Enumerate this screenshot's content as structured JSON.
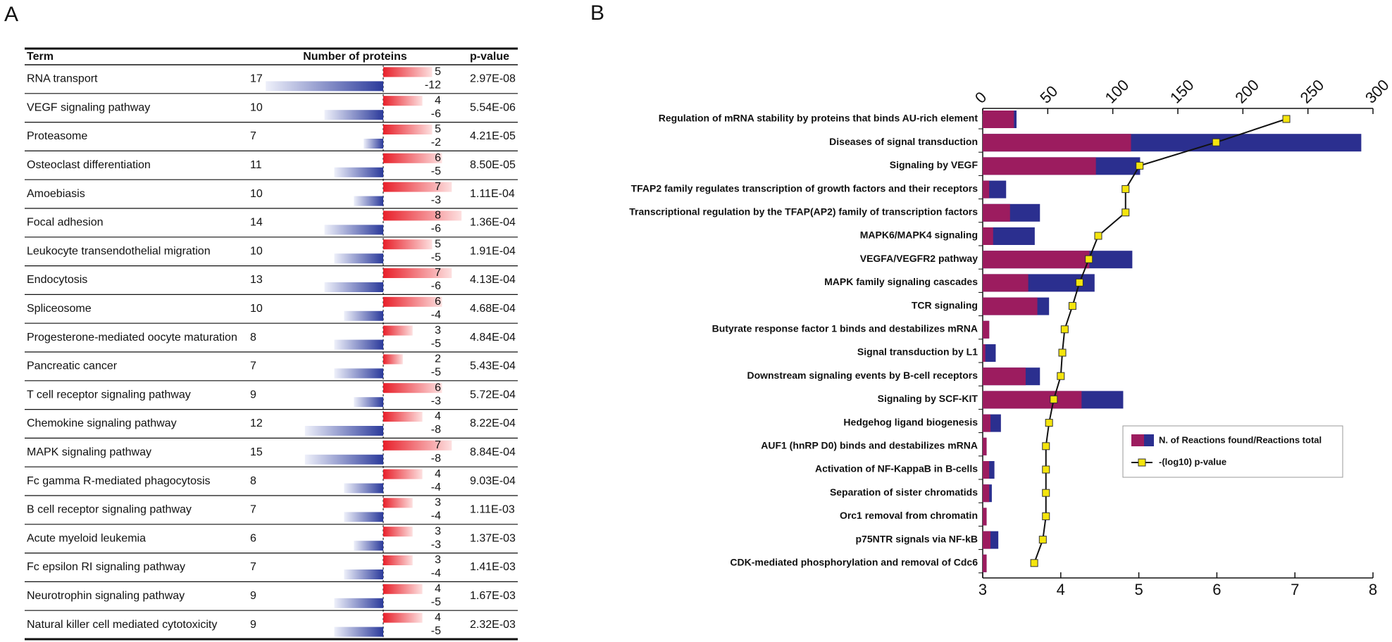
{
  "chart_data": [
    {
      "type": "protein-table",
      "panel": "A",
      "columns": [
        "Term",
        "Number of proteins",
        "p-value"
      ],
      "categories": [
        "RNA transport",
        "VEGF signaling pathway",
        "Proteasome",
        "Osteoclast differentiation",
        "Amoebiasis",
        "Focal adhesion",
        "Leukocyte transendothelial migration",
        "Endocytosis",
        "Spliceosome",
        "Progesterone-mediated oocyte maturation",
        "Pancreatic cancer",
        "T cell receptor signaling pathway",
        "Chemokine signaling pathway",
        "MAPK signaling pathway",
        "Fc gamma R-mediated phagocytosis",
        "B cell receptor signaling pathway",
        "Acute myeloid leukemia",
        "Fc epsilon RI signaling pathway",
        "Neurotrophin signaling pathway",
        "Natural killer cell mediated cytotoxicity"
      ],
      "totals": [
        17,
        10,
        7,
        11,
        10,
        14,
        10,
        13,
        10,
        8,
        7,
        9,
        12,
        15,
        8,
        7,
        6,
        7,
        9,
        9
      ],
      "up": [
        5,
        4,
        5,
        6,
        7,
        8,
        5,
        7,
        6,
        3,
        2,
        6,
        4,
        7,
        4,
        3,
        3,
        3,
        4,
        4
      ],
      "down": [
        -12,
        -6,
        -2,
        -5,
        -3,
        -6,
        -5,
        -6,
        -4,
        -5,
        -5,
        -3,
        -8,
        -8,
        -4,
        -4,
        -3,
        -4,
        -5,
        -5
      ],
      "p_values": [
        "2.97E-08",
        "5.54E-06",
        "4.21E-05",
        "8.50E-05",
        "1.11E-04",
        "1.36E-04",
        "1.91E-04",
        "4.13E-04",
        "4.68E-04",
        "4.84E-04",
        "5.43E-04",
        "5.72E-04",
        "8.22E-04",
        "8.84E-04",
        "9.03E-04",
        "1.11E-03",
        "1.37E-03",
        "1.41E-03",
        "1.67E-03",
        "2.32E-03"
      ],
      "up_color": "#e8202a",
      "down_color": "#2b3a9b"
    },
    {
      "type": "bar-line",
      "panel": "B",
      "categories": [
        "Regulation of mRNA stability by proteins that binds AU-rich element",
        "Diseases of signal transduction",
        "Signaling by VEGF",
        "TFAP2 family regulates transcription of growth factors and their receptors",
        "Transcriptional regulation by the TFAP(AP2) family of transcription factors",
        "MAPK6/MAPK4 signaling",
        "VEGFA/VEGFR2 pathway",
        "MAPK family signaling cascades",
        "TCR signaling",
        "Butyrate response factor 1 binds and destabilizes mRNA",
        "Signal transduction by L1",
        "Downstream signaling events by B-cell receptors",
        "Signaling by SCF-KIT",
        "Hedgehog ligand biogenesis",
        "AUF1 (hnRP D0) binds and destabilizes mRNA",
        "Activation of NF-KappaB in B-cells",
        "Separation of sister chromatids",
        "Orc1 removal from chromatin",
        "p75NTR signals via NF-kB",
        "CDK-mediated phosphorylation and removal of Cdc6"
      ],
      "xlim": [
        0,
        300
      ],
      "xticks": [
        0,
        50,
        100,
        150,
        200,
        250,
        300
      ],
      "x2lim": [
        3,
        8
      ],
      "x2ticks": [
        3,
        4,
        5,
        6,
        7,
        8
      ],
      "series": [
        {
          "name": "N. of Reactions found/Reactions total",
          "found_color": "#9c1c5f",
          "total_color": "#2b2f8f",
          "found": [
            24,
            114,
            87,
            5,
            21,
            8,
            82,
            35,
            42,
            5,
            2,
            33,
            76,
            6,
            3,
            5,
            5,
            3,
            6,
            3
          ],
          "total": [
            26,
            291,
            121,
            18,
            44,
            40,
            115,
            86,
            51,
            5,
            10,
            44,
            108,
            14,
            3,
            9,
            7,
            3,
            12,
            3
          ]
        },
        {
          "name": "-(log10) p-value",
          "color": "#f5e50d",
          "axis": "x2",
          "values": [
            6.89,
            5.99,
            5.01,
            4.83,
            4.83,
            4.48,
            4.36,
            4.24,
            4.15,
            4.05,
            4.02,
            4.0,
            3.91,
            3.85,
            3.81,
            3.81,
            3.81,
            3.81,
            3.77,
            3.66
          ]
        }
      ]
    }
  ]
}
